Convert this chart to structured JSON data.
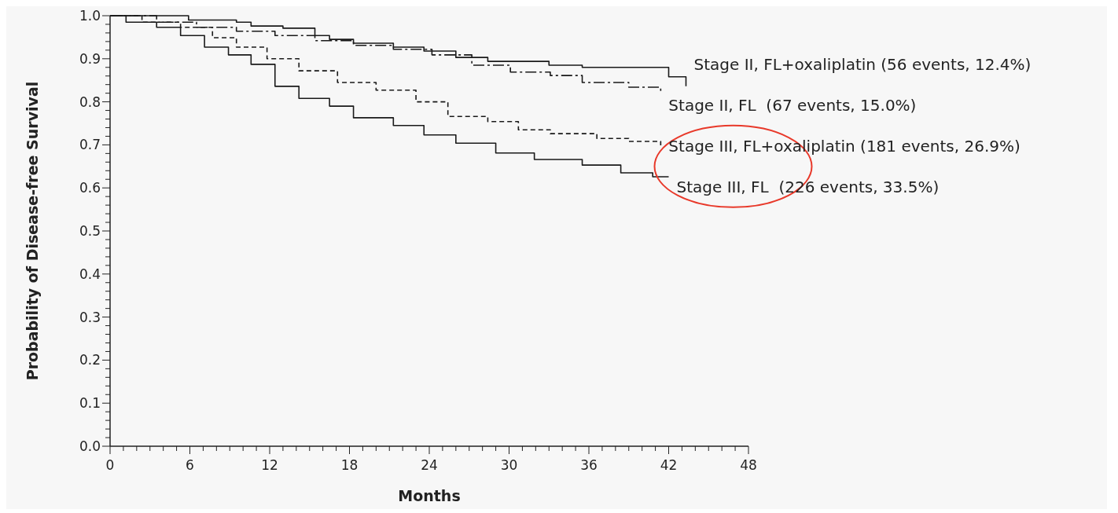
{
  "chart_data": {
    "type": "step",
    "xlabel": "Months",
    "ylabel": "Probability of Disease-free Survival",
    "xlim": [
      0,
      48
    ],
    "ylim": [
      0,
      1
    ],
    "xticks": [
      0,
      {
        "value": 1,
        "label": null
      },
      {
        "value": 2,
        "label": null
      },
      {
        "value": 3,
        "label": null
      },
      {
        "value": 4,
        "label": null
      },
      {
        "value": 5,
        "label": null
      },
      6,
      {
        "value": 7,
        "label": null
      },
      {
        "value": 8,
        "label": null
      },
      {
        "value": 9,
        "label": null
      },
      {
        "value": 10,
        "label": null
      },
      {
        "value": 11,
        "label": null
      },
      12,
      {
        "value": 13,
        "label": null
      },
      {
        "value": 14,
        "label": null
      },
      {
        "value": 15,
        "label": null
      },
      {
        "value": 16,
        "label": null
      },
      {
        "value": 17,
        "label": null
      },
      18,
      {
        "value": 19,
        "label": null
      },
      {
        "value": 20,
        "label": null
      },
      {
        "value": 21,
        "label": null
      },
      {
        "value": 22,
        "label": null
      },
      {
        "value": 23,
        "label": null
      },
      24,
      {
        "value": 25,
        "label": null
      },
      {
        "value": 26,
        "label": null
      },
      {
        "value": 27,
        "label": null
      },
      {
        "value": 28,
        "label": null
      },
      {
        "value": 29,
        "label": null
      },
      30,
      {
        "value": 31,
        "label": null
      },
      {
        "value": 32,
        "label": null
      },
      {
        "value": 33,
        "label": null
      },
      {
        "value": 34,
        "label": null
      },
      {
        "value": 35,
        "label": null
      },
      36,
      {
        "value": 37,
        "label": null
      },
      {
        "value": 38,
        "label": null
      },
      {
        "value": 39,
        "label": null
      },
      {
        "value": 40,
        "label": null
      },
      {
        "value": 41,
        "label": null
      },
      42,
      {
        "value": 43,
        "label": null
      },
      {
        "value": 44,
        "label": null
      },
      {
        "value": 45,
        "label": null
      },
      {
        "value": 46,
        "label": null
      },
      {
        "value": 47,
        "label": null
      },
      48
    ],
    "yticks": [
      {
        "value": 0,
        "label": "0.0"
      },
      {
        "value": 0.02,
        "label": null
      },
      {
        "value": 0.04,
        "label": null
      },
      {
        "value": 0.06,
        "label": null
      },
      {
        "value": 0.08,
        "label": null
      },
      {
        "value": 0.1,
        "label": "0.1"
      },
      {
        "value": 0.12,
        "label": null
      },
      {
        "value": 0.14,
        "label": null
      },
      {
        "value": 0.16,
        "label": null
      },
      {
        "value": 0.18,
        "label": null
      },
      {
        "value": 0.2,
        "label": "0.2"
      },
      {
        "value": 0.22,
        "label": null
      },
      {
        "value": 0.24,
        "label": null
      },
      {
        "value": 0.26,
        "label": null
      },
      {
        "value": 0.28,
        "label": null
      },
      {
        "value": 0.3,
        "label": "0.3"
      },
      {
        "value": 0.32,
        "label": null
      },
      {
        "value": 0.34,
        "label": null
      },
      {
        "value": 0.36,
        "label": null
      },
      {
        "value": 0.38,
        "label": null
      },
      {
        "value": 0.4,
        "label": "0.4"
      },
      {
        "value": 0.42,
        "label": null
      },
      {
        "value": 0.44,
        "label": null
      },
      {
        "value": 0.46,
        "label": null
      },
      {
        "value": 0.48,
        "label": null
      },
      {
        "value": 0.5,
        "label": "0.5"
      },
      {
        "value": 0.52,
        "label": null
      },
      {
        "value": 0.54,
        "label": null
      },
      {
        "value": 0.56,
        "label": null
      },
      {
        "value": 0.58,
        "label": null
      },
      {
        "value": 0.6,
        "label": "0.6"
      },
      {
        "value": 0.62,
        "label": null
      },
      {
        "value": 0.64,
        "label": null
      },
      {
        "value": 0.66,
        "label": null
      },
      {
        "value": 0.68,
        "label": null
      },
      {
        "value": 0.7,
        "label": "0.7"
      },
      {
        "value": 0.72,
        "label": null
      },
      {
        "value": 0.74,
        "label": null
      },
      {
        "value": 0.76,
        "label": null
      },
      {
        "value": 0.78,
        "label": null
      },
      {
        "value": 0.8,
        "label": "0.8"
      },
      {
        "value": 0.82,
        "label": null
      },
      {
        "value": 0.84,
        "label": null
      },
      {
        "value": 0.86,
        "label": null
      },
      {
        "value": 0.88,
        "label": null
      },
      {
        "value": 0.9,
        "label": "0.9"
      },
      {
        "value": 0.92,
        "label": null
      },
      {
        "value": 0.94,
        "label": null
      },
      {
        "value": 0.96,
        "label": null
      },
      {
        "value": 0.98,
        "label": null
      },
      {
        "value": 1,
        "label": "1.0"
      }
    ],
    "grid": false,
    "series": [
      {
        "name": "Stage II, FL+oxaliplatin (56 events, 12.4%)",
        "color": "#1a1a1a",
        "line_style": "solid",
        "x": [
          0,
          5.9,
          9.5,
          10.6,
          13,
          15.4,
          16.5,
          18.3,
          21.3,
          23.6,
          26,
          28.4,
          33,
          35.5,
          42,
          43.3
        ],
        "values": [
          1,
          0.99,
          0.985,
          0.976,
          0.971,
          0.954,
          0.945,
          0.936,
          0.927,
          0.918,
          0.903,
          0.894,
          0.885,
          0.88,
          0.858,
          0.836
        ]
      },
      {
        "name": "Stage II, FL  (67 events, 15.0%)",
        "color": "#1a1a1a",
        "line_style": "dashed",
        "x": [
          0,
          3.5,
          6.5,
          9.5,
          12.4,
          15.4,
          18.3,
          21.3,
          24.2,
          27.2,
          30.1,
          33.1,
          35.5,
          39,
          41.4
        ],
        "values": [
          1,
          0.985,
          0.973,
          0.964,
          0.954,
          0.942,
          0.931,
          0.922,
          0.909,
          0.885,
          0.869,
          0.861,
          0.845,
          0.834,
          0.821
        ]
      },
      {
        "name": "Stage III, FL+oxaliplatin (181 events, 26.9%)",
        "color": "#1a1a1a",
        "line_style": "dotted",
        "x": [
          0,
          2.4,
          5.3,
          7.7,
          9.5,
          11.8,
          14.2,
          17.1,
          20,
          23,
          25.4,
          28.4,
          30.7,
          33.1,
          36.6,
          39,
          41.4
        ],
        "values": [
          1,
          0.985,
          0.973,
          0.949,
          0.927,
          0.9,
          0.872,
          0.845,
          0.827,
          0.8,
          0.766,
          0.754,
          0.735,
          0.726,
          0.715,
          0.708,
          0.699
        ]
      },
      {
        "name": "Stage III, FL  (226 events, 33.5%)",
        "color": "#1a1a1a",
        "line_style": "solid",
        "x": [
          0,
          1.2,
          3.5,
          5.3,
          7.1,
          8.9,
          10.6,
          12.4,
          14.2,
          16.5,
          18.3,
          21.3,
          23.6,
          26,
          29,
          31.9,
          35.5,
          38.4,
          40.8,
          42
        ],
        "values": [
          1,
          0.985,
          0.973,
          0.954,
          0.927,
          0.909,
          0.887,
          0.836,
          0.808,
          0.79,
          0.763,
          0.745,
          0.723,
          0.704,
          0.681,
          0.666,
          0.653,
          0.635,
          0.626,
          0.626
        ]
      }
    ]
  }
}
